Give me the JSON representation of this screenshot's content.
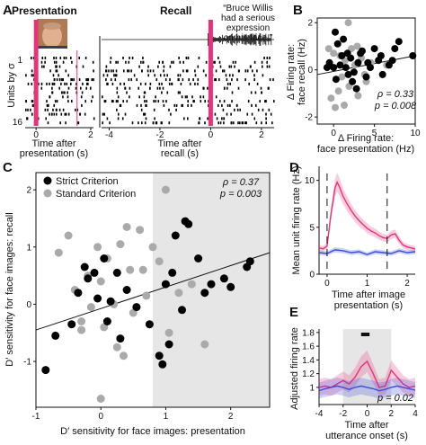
{
  "panel_a": {
    "letter": "A",
    "title_presentation": "Presentation",
    "title_recall": "Recall",
    "quote": [
      "“Bruce Willis",
      "had a serious",
      "expression",
      "on his face.”"
    ],
    "ylabel": "Units by σ",
    "yticks": [
      "1",
      "16"
    ],
    "pres_xticks": [
      "0",
      "2"
    ],
    "rec_xticks": [
      "-4",
      "-2",
      "0",
      "2"
    ],
    "pres_xlabel": [
      "Time after",
      "presentation (s)"
    ],
    "rec_xlabel": [
      "Time after",
      "recall (s)"
    ],
    "colors": {
      "marker": "#e6337a",
      "raster": "#000000"
    }
  },
  "chart_data": [
    {
      "panel": "B",
      "type": "scatter",
      "xlabel": [
        "Δ Firing rate:",
        "face presentation (Hz)"
      ],
      "ylabel": [
        "Δ Firing rate:",
        "face recall (Hz)"
      ],
      "xlim": [
        -2,
        10
      ],
      "ylim": [
        -2.3,
        2.2
      ],
      "xticks": [
        "0",
        "5",
        "10"
      ],
      "yticks": [
        "-2",
        "0",
        "2"
      ],
      "stats": [
        "ρ = 0.33",
        "p = 0.008"
      ],
      "fit": {
        "x": [
          -2,
          10
        ],
        "y": [
          -0.2,
          0.6
        ]
      },
      "series": [
        {
          "color": "#000000",
          "x": [
            -0.5,
            0,
            0.3,
            0.8,
            1,
            1.5,
            1.8,
            2.1,
            2.5,
            3,
            3.5,
            4,
            4.5,
            5,
            5.5,
            6,
            6.8,
            7.5,
            8,
            9.7,
            0.2,
            1.2,
            2.8,
            3.3,
            4.2,
            -0.8,
            0.5,
            1.7,
            2.3,
            5.8,
            7.2
          ],
          "y": [
            0.3,
            0.1,
            -0.4,
            0.2,
            0.6,
            0.1,
            -0.2,
            0.5,
            -0.1,
            0.3,
            0.8,
            -0.3,
            0.1,
            0.9,
            0.4,
            -0.2,
            0.2,
            0.9,
            1.2,
            0.6,
            1.6,
            1.3,
            -0.8,
            0.7,
            0.3,
            0.1,
            1.1,
            0.7,
            -0.5,
            0.6,
            0.4
          ]
        },
        {
          "color": "#aaaaaa",
          "x": [
            -0.3,
            0.2,
            0.6,
            1,
            1.4,
            1.9,
            2.2,
            2.6,
            3,
            3.4,
            0,
            1.8,
            4,
            4.6,
            0.8,
            6.5,
            2.9,
            1.3,
            3.8,
            -0.6
          ],
          "y": [
            -1.2,
            -1.6,
            -0.9,
            -0.3,
            0.4,
            -0.7,
            0.9,
            0.2,
            -1.1,
            0.5,
            0.7,
            2.0,
            -0.5,
            0.3,
            0.6,
            0.2,
            1.0,
            -1.5,
            -0.2,
            0.9
          ]
        }
      ]
    },
    {
      "panel": "C",
      "type": "scatter",
      "xlabel": "D′ sensitivity for face images: presentation",
      "ylabel": "D′ sensitivity for face images: recall",
      "xlim": [
        -1,
        2.6
      ],
      "ylim": [
        -1.8,
        2.3
      ],
      "xticks": [
        "-1",
        "0",
        "1",
        "2"
      ],
      "yticks": [
        "-1",
        "0",
        "1",
        "2"
      ],
      "stats": [
        "ρ = 0.37",
        "p = 0.003"
      ],
      "legend": [
        "Strict Criterion",
        "Standard Criterion"
      ],
      "shade": [
        0.8,
        2.6
      ],
      "fit": {
        "x": [
          -1,
          2.6
        ],
        "y": [
          -0.45,
          0.9
        ]
      },
      "series": [
        {
          "name": "Strict Criterion",
          "color": "#000000",
          "x": [
            -0.85,
            -0.7,
            -0.45,
            -0.35,
            -0.25,
            -0.2,
            -0.1,
            -0.05,
            0.05,
            0.1,
            0.25,
            0.3,
            0.4,
            0.55,
            0.75,
            0.9,
            0.95,
            1.0,
            1.05,
            1.1,
            1.15,
            1.3,
            1.35,
            1.5,
            1.6,
            1.7,
            1.9,
            2.0,
            2.25,
            2.3,
            0.15,
            1.25
          ],
          "y": [
            -1.15,
            -0.55,
            -0.35,
            0.2,
            0.65,
            0.45,
            0.55,
            0.1,
            0.8,
            -0.3,
            0.55,
            -0.6,
            0.25,
            -0.05,
            -0.35,
            -0.9,
            -1.05,
            0.35,
            -0.7,
            0.55,
            1.2,
            1.45,
            1.4,
            0.8,
            0.2,
            0.35,
            0.45,
            0.3,
            0.65,
            0.75,
            0.05,
            -0.1
          ]
        },
        {
          "name": "Standard Criterion",
          "color": "#aaaaaa",
          "x": [
            -0.65,
            -0.5,
            -0.4,
            -0.3,
            -0.2,
            -0.15,
            -0.05,
            0.0,
            0.05,
            0.1,
            0.2,
            0.3,
            0.35,
            0.45,
            0.5,
            0.6,
            0.7,
            0.8,
            0.9,
            1.0,
            1.05,
            1.2,
            1.4,
            1.6,
            0.0,
            -0.3,
            0.25,
            0.65,
            0.4
          ],
          "y": [
            0.9,
            1.2,
            0.25,
            -0.3,
            0.5,
            -0.05,
            1.0,
            -1.65,
            -0.4,
            0.8,
            0.0,
            1.05,
            -0.9,
            0.6,
            -0.15,
            1.3,
            0.15,
            1.0,
            0.75,
            2.0,
            -0.5,
            0.2,
            0.35,
            -0.7,
            0.4,
            -0.45,
            -0.75,
            0.6,
            1.35
          ]
        }
      ]
    },
    {
      "panel": "D",
      "type": "line",
      "xlabel": [
        "Time after image",
        "presentation (s)"
      ],
      "ylabel": "Mean unit firing rate (Hz)",
      "xlim": [
        -0.2,
        2.2
      ],
      "ylim": [
        0,
        11.5
      ],
      "xticks": [
        "0",
        "1",
        "2"
      ],
      "yticks": [
        "0",
        "5",
        "10"
      ],
      "markers": [
        0,
        1.5
      ],
      "series": [
        {
          "color": "#e6337a",
          "x": [
            -0.2,
            -0.1,
            0,
            0.1,
            0.2,
            0.25,
            0.3,
            0.4,
            0.5,
            0.6,
            0.7,
            0.8,
            0.9,
            1.0,
            1.1,
            1.2,
            1.3,
            1.4,
            1.5,
            1.6,
            1.7,
            1.8,
            1.9,
            2.0,
            2.1,
            2.2
          ],
          "y": [
            2.8,
            2.7,
            3.0,
            6.5,
            9.2,
            9.8,
            9.4,
            8.3,
            7.5,
            6.8,
            6.2,
            5.7,
            5.3,
            4.9,
            4.6,
            4.4,
            4.1,
            3.9,
            3.8,
            4.2,
            4.3,
            3.6,
            3.1,
            2.9,
            2.8,
            2.7
          ]
        },
        {
          "color": "#3a4fd6",
          "x": [
            -0.2,
            0,
            0.2,
            0.4,
            0.6,
            0.8,
            1.0,
            1.2,
            1.4,
            1.6,
            1.8,
            2.0,
            2.2
          ],
          "y": [
            2.3,
            2.2,
            2.6,
            2.5,
            2.3,
            2.4,
            2.1,
            2.4,
            2.3,
            2.2,
            2.5,
            2.3,
            2.4
          ]
        }
      ]
    },
    {
      "panel": "E",
      "type": "line",
      "xlabel": [
        "Time after",
        "utterance onset (s)"
      ],
      "ylabel": "Adjusted firing rate",
      "xlim": [
        -4,
        4
      ],
      "ylim": [
        0.75,
        1.85
      ],
      "xticks": [
        "-4",
        "-2",
        "0",
        "2",
        "4"
      ],
      "yticks": [
        "1",
        "1.2",
        "1.4",
        "1.6",
        "1.8"
      ],
      "shade": [
        -2,
        2
      ],
      "bar": [
        -0.5,
        0.2
      ],
      "stats": [
        "p = 0.02"
      ],
      "series": [
        {
          "color": "#e6337a",
          "x": [
            -4,
            -3.5,
            -3,
            -2.5,
            -2,
            -1.5,
            -1,
            -0.5,
            0,
            0.5,
            1,
            1.5,
            2,
            2.5,
            3,
            3.5,
            4
          ],
          "y": [
            1.0,
            1.02,
            1.0,
            1.05,
            1.1,
            1.05,
            1.15,
            1.3,
            1.38,
            1.2,
            1.0,
            1.02,
            1.25,
            1.15,
            1.05,
            1.0,
            1.02
          ]
        },
        {
          "color": "#3a4fd6",
          "x": [
            -4,
            -3.5,
            -3,
            -2.5,
            -2,
            -1.5,
            -1,
            -0.5,
            0,
            0.5,
            1,
            1.5,
            2,
            2.5,
            3,
            3.5,
            4
          ],
          "y": [
            0.95,
            0.98,
            1.0,
            1.02,
            1.0,
            0.97,
            1.0,
            1.02,
            1.0,
            0.98,
            0.95,
            0.97,
            1.0,
            1.02,
            1.0,
            0.98,
            0.96
          ]
        }
      ]
    }
  ]
}
